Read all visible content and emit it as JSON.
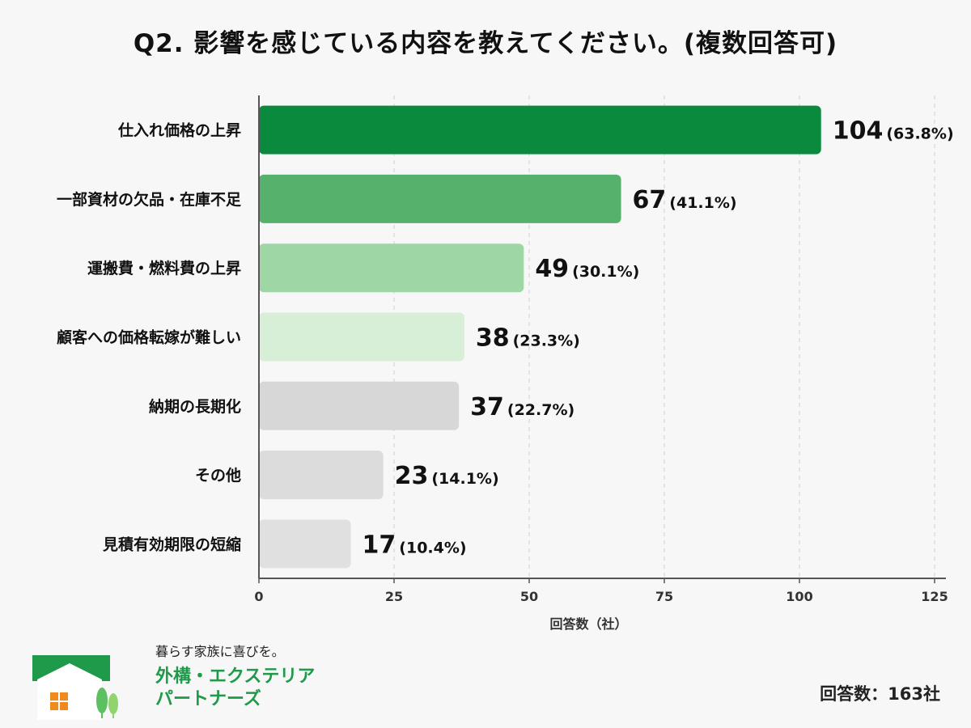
{
  "title": "Q2. 影響を感じている内容を教えてください。(複数回答可)",
  "chart_data": {
    "type": "bar",
    "orientation": "horizontal",
    "categories": [
      "仕入れ価格の上昇",
      "一部資材の欠品・在庫不足",
      "運搬費・燃料費の上昇",
      "顧客への価格転嫁が難しい",
      "納期の長期化",
      "その他",
      "見積有効期限の短縮"
    ],
    "values": [
      104,
      67,
      49,
      38,
      37,
      23,
      17
    ],
    "percent_labels": [
      "(63.8%)",
      "(41.1%)",
      "(30.1%)",
      "(23.3%)",
      "(22.7%)",
      "(14.1%)",
      "(10.4%)"
    ],
    "bar_colors": [
      "#0a8a3c",
      "#55b16c",
      "#9ed6a6",
      "#d7efd6",
      "#d7d7d7",
      "#dcdcdc",
      "#e0e0e0"
    ],
    "xlabel": "回答数（社）",
    "xlim": [
      0,
      125
    ],
    "xticks": [
      0,
      25,
      50,
      75,
      100,
      125
    ],
    "grid": "vertical-dashed"
  },
  "logo": {
    "tagline": "暮らす家族に喜びを。",
    "name_line1": "外構・エクステリア",
    "name_line2": "パートナーズ",
    "icon": "house-with-trees-icon"
  },
  "respondents": "回答数：163社",
  "colors": {
    "accent": "#0a8a3c",
    "brand": "#1f9a4a"
  }
}
